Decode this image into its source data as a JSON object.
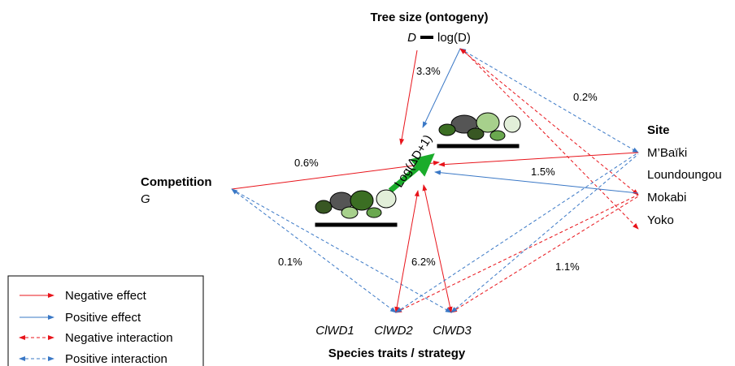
{
  "tree_size": {
    "title": "Tree size (ontogeny)",
    "var1": "D",
    "var2": "log(D)"
  },
  "site": {
    "title": "Site",
    "sites": [
      "M’Baïki",
      "Loundoungou",
      "Mokabi",
      "Yoko"
    ]
  },
  "competition": {
    "title": "Competition",
    "var": "G"
  },
  "traits": {
    "title": "Species traits / strategy",
    "vars": [
      "ClWD1",
      "ClWD2",
      "ClWD3"
    ]
  },
  "response": "Log(ΔD+1)",
  "percentages": {
    "tree_size": "3.3%",
    "tree_size_site": "0.2%",
    "competition": "0.6%",
    "site": "1.5%",
    "competition_traits": "0.1%",
    "traits": "6.2%",
    "traits_site": "1.1%"
  },
  "legend": [
    "Negative effect",
    "Positive effect",
    "Negative interaction",
    "Positive interaction"
  ]
}
